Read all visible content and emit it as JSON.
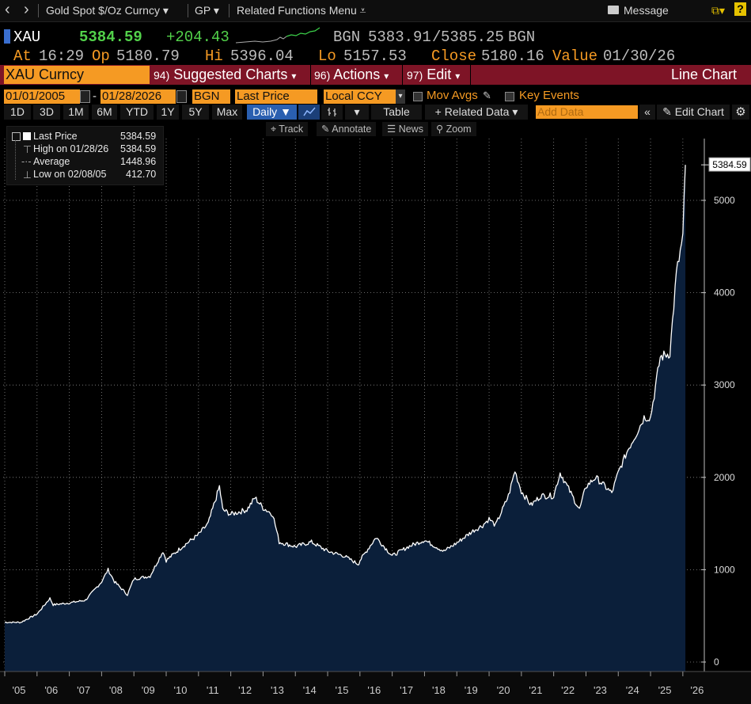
{
  "topbar": {
    "back_glyph": "‹",
    "forward_glyph": "›",
    "security_menu": "Gold Spot $/Oz Curncy ▾",
    "function_menu": "GP ▾",
    "related_menu": "Related Functions Menu ⩡",
    "message_label": "Message",
    "envelope_icon": "envelope-icon",
    "export_glyph": "⧉▾",
    "help_glyph": "?"
  },
  "quote": {
    "ticker": "XAU",
    "last": "5384.59",
    "change": "+204.43",
    "bid_src": "BGN",
    "bid": "5383.91",
    "ask": "5385.25",
    "ask_src": "BGN",
    "at_label": "At",
    "at_time": "16:29",
    "op_label": "Op",
    "op": "5180.79",
    "hi_label": "Hi",
    "hi": "5396.04",
    "lo_label": "Lo",
    "lo": "5157.53",
    "close_label": "Close",
    "close": "5180.16",
    "value_label": "Value",
    "value_date": "01/30/26"
  },
  "actionbar": {
    "security": "XAU Curncy",
    "suggested_num": "94)",
    "suggested": "Suggested Charts",
    "actions_num": "96)",
    "actions": "Actions",
    "edit_num": "97)",
    "edit": "Edit",
    "chart_type": "Line Chart"
  },
  "fields": {
    "start_date": "01/01/2005",
    "dash": "-",
    "end_date": "01/28/2026",
    "pricing_source": "BGN",
    "field": "Last Price",
    "currency": "Local CCY",
    "mov_avgs": "Mov Avgs",
    "key_events": "Key Events"
  },
  "periods": {
    "items": [
      "1D",
      "3D",
      "1M",
      "6M",
      "YTD",
      "1Y",
      "5Y",
      "Max"
    ],
    "frequency": "Daily ▼",
    "table": "Table",
    "related_data": "+ Related Data ▾",
    "add_data_placeholder": "Add Data",
    "collapse": "«",
    "edit_chart": "Edit Chart"
  },
  "tools": {
    "track": "Track",
    "annotate": "Annotate",
    "news": "News",
    "zoom": "Zoom"
  },
  "legend": {
    "last_label": "Last Price",
    "last_value": "5384.59",
    "high_label": "High on 01/28/26",
    "high_value": "5384.59",
    "avg_label": "Average",
    "avg_value": "1448.96",
    "low_label": "Low on 02/08/05",
    "low_value": "412.70"
  },
  "colors": {
    "accent_orange": "#f59a23",
    "bar_red": "#7e1426",
    "price_green": "#52d14a",
    "area_fill": "#0b1f3a",
    "line": "#ffffff",
    "selected_blue": "#2a5fb0"
  },
  "chart_data": {
    "type": "area",
    "series": [
      {
        "name": "Last Price",
        "x": [
          2005.0,
          2005.5,
          2006.0,
          2006.4,
          2006.5,
          2007.0,
          2007.5,
          2008.0,
          2008.2,
          2008.4,
          2008.8,
          2009.0,
          2009.5,
          2009.9,
          2010.0,
          2010.5,
          2011.0,
          2011.3,
          2011.65,
          2011.75,
          2012.0,
          2012.5,
          2012.75,
          2013.0,
          2013.3,
          2013.5,
          2014.0,
          2014.5,
          2015.0,
          2015.5,
          2015.95,
          2016.0,
          2016.5,
          2017.0,
          2017.5,
          2018.0,
          2018.6,
          2019.0,
          2019.5,
          2019.8,
          2020.0,
          2020.2,
          2020.6,
          2020.8,
          2021.0,
          2021.3,
          2021.6,
          2022.0,
          2022.2,
          2022.8,
          2023.0,
          2023.3,
          2023.8,
          2024.0,
          2024.3,
          2024.6,
          2024.8,
          2025.0,
          2025.3,
          2025.6,
          2025.8,
          2026.0,
          2026.08
        ],
        "y": [
          430,
          430,
          520,
          690,
          620,
          640,
          670,
          870,
          1000,
          870,
          730,
          900,
          930,
          1200,
          1100,
          1250,
          1380,
          1500,
          1900,
          1650,
          1600,
          1650,
          1780,
          1670,
          1600,
          1300,
          1250,
          1300,
          1200,
          1150,
          1060,
          1100,
          1350,
          1150,
          1250,
          1320,
          1200,
          1290,
          1420,
          1480,
          1550,
          1480,
          1800,
          2070,
          1850,
          1700,
          1800,
          1800,
          2050,
          1650,
          1900,
          2000,
          1830,
          2050,
          2300,
          2500,
          2650,
          2650,
          3300,
          3350,
          4200,
          4600,
          5384.59
        ]
      }
    ],
    "xticks": [
      "'05",
      "'06",
      "'07",
      "'08",
      "'09",
      "'10",
      "'11",
      "'12",
      "'13",
      "'14",
      "'15",
      "'16",
      "'17",
      "'18",
      "'19",
      "'20",
      "'21",
      "'22",
      "'23",
      "'24",
      "'25",
      "'26"
    ],
    "yticks": [
      0,
      1000,
      2000,
      3000,
      4000,
      5000
    ],
    "ylim": [
      0,
      5560
    ],
    "last_value_label": "5384.59",
    "grid": true,
    "legend_position": "top-left"
  }
}
